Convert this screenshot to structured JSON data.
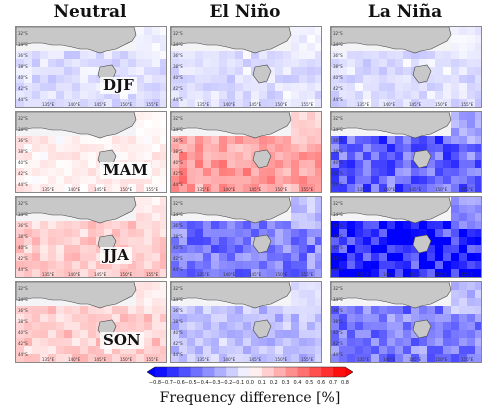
{
  "columns": [
    "Neutral",
    "El Niño",
    "La Niña"
  ],
  "seasons": [
    "DJF",
    "MAM",
    "JJA",
    "SON"
  ],
  "lat_labels": [
    "32°S",
    "34°S",
    "36°S",
    "38°S",
    "40°S",
    "42°S",
    "44°S"
  ],
  "lon_labels": [
    "135°E",
    "140°E",
    "145°E",
    "150°E",
    "155°E"
  ],
  "chart_data": {
    "type": "heatmap",
    "title": "",
    "rows": [
      "DJF",
      "MAM",
      "JJA",
      "SON"
    ],
    "columns": [
      "Neutral",
      "El Niño",
      "La Niña"
    ],
    "mean_difference": [
      [
        -0.1,
        -0.1,
        -0.1
      ],
      [
        0.05,
        0.3,
        -0.5
      ],
      [
        0.15,
        -0.4,
        -0.7
      ],
      [
        0.15,
        -0.2,
        -0.4
      ]
    ],
    "colorbar": {
      "label": "Frequency difference [%]",
      "ticks": [
        "−0.8",
        "−0.7",
        "−0.6",
        "−0.5",
        "−0.4",
        "−0.3",
        "−0.2",
        "−0.1",
        "0.0",
        "0.1",
        "0.2",
        "0.3",
        "0.4",
        "0.5",
        "0.6",
        "0.7",
        "0.8"
      ],
      "range": [
        -0.8,
        0.8
      ],
      "colors": {
        "low": "#0000ff",
        "mid": "#ffffff",
        "high": "#ff0000"
      }
    }
  }
}
